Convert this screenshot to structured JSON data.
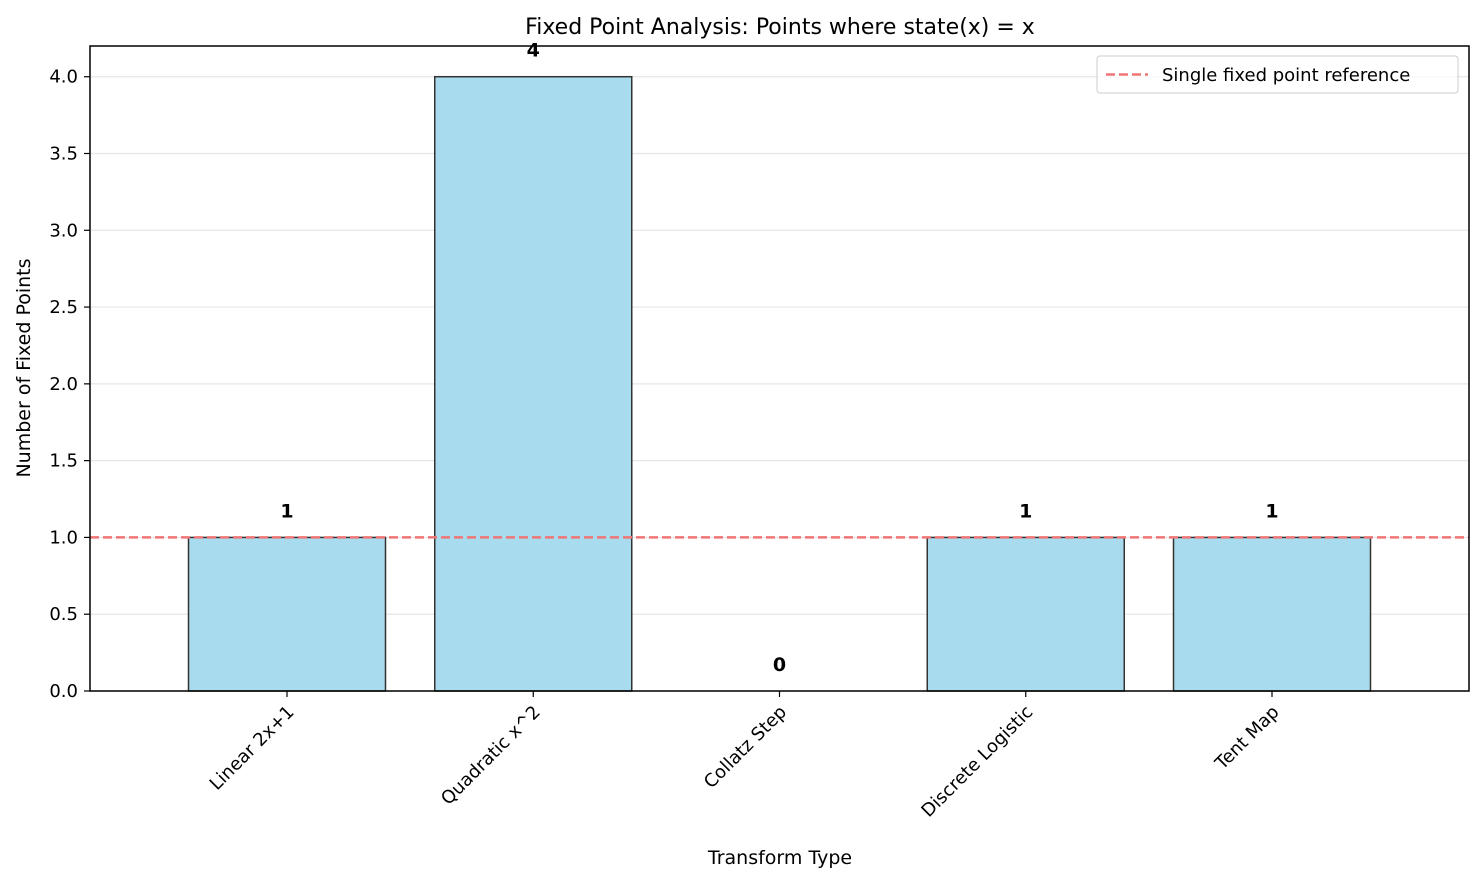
{
  "chart_data": {
    "type": "bar",
    "title": "Fixed Point Analysis: Points where state(x) = x",
    "xlabel": "Transform Type",
    "ylabel": "Number of Fixed Points",
    "categories": [
      "Linear 2x+1",
      "Quadratic x^2",
      "Collatz Step",
      "Discrete Logistic",
      "Tent Map"
    ],
    "values": [
      1,
      4,
      0,
      1,
      1
    ],
    "data_labels": [
      "1",
      "4",
      "0",
      "1",
      "1"
    ],
    "ylim": [
      0,
      4.2
    ],
    "yticks": [
      0.0,
      0.5,
      1.0,
      1.5,
      2.0,
      2.5,
      3.0,
      3.5,
      4.0
    ],
    "ytick_labels": [
      "0.0",
      "0.5",
      "1.0",
      "1.5",
      "2.0",
      "2.5",
      "3.0",
      "3.5",
      "4.0"
    ],
    "grid": "y-axis",
    "reference_line": {
      "value": 1.0,
      "label": "Single fixed point reference",
      "style": "dashed",
      "color": "#f07575"
    },
    "legend_position": "top-right",
    "colors": {
      "bar_fill": "#a8dbed",
      "bar_edge": "#333333",
      "grid": "#e6e6e6",
      "axis": "#000000"
    }
  }
}
